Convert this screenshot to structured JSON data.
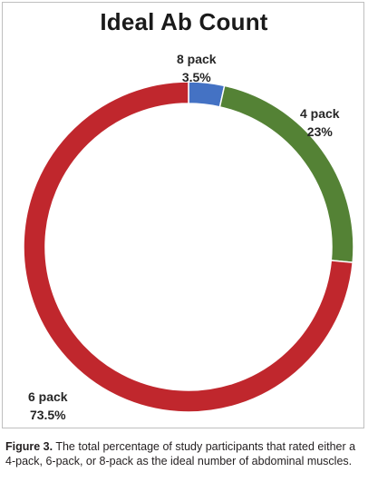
{
  "chart_data": {
    "type": "pie",
    "variant": "donut",
    "title": "Ideal Ab Count",
    "categories": [
      "8 pack",
      "4 pack",
      "6 pack"
    ],
    "values": [
      3.5,
      23,
      73.5
    ],
    "value_labels": [
      "3.5%",
      "23%",
      "73.5%"
    ],
    "unit": "%",
    "colors": [
      "#4472C4",
      "#548235",
      "#C0272D"
    ],
    "legend": "none"
  },
  "caption": {
    "figure_number": "Figure 3.",
    "text": "The total percentage of study participants that rated either a 4-pack, 6-pack, or 8-pack as the ideal number of abdominal muscles."
  }
}
